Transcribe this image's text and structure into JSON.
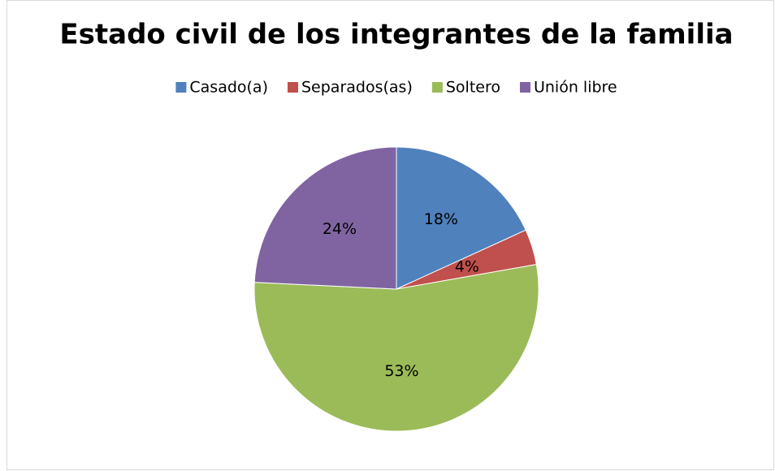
{
  "chart_data": {
    "type": "pie",
    "title": "Estado civil de los integrantes de la familia",
    "categories": [
      "Casado(a)",
      "Separados(as)",
      "Soltero",
      "Unión libre"
    ],
    "values": [
      18,
      4,
      53,
      24
    ],
    "value_labels": [
      "18%",
      "4%",
      "53%",
      "24%"
    ],
    "colors": [
      "#4f81bd",
      "#c0504d",
      "#9bbb59",
      "#8064a2"
    ],
    "legend": "top"
  }
}
